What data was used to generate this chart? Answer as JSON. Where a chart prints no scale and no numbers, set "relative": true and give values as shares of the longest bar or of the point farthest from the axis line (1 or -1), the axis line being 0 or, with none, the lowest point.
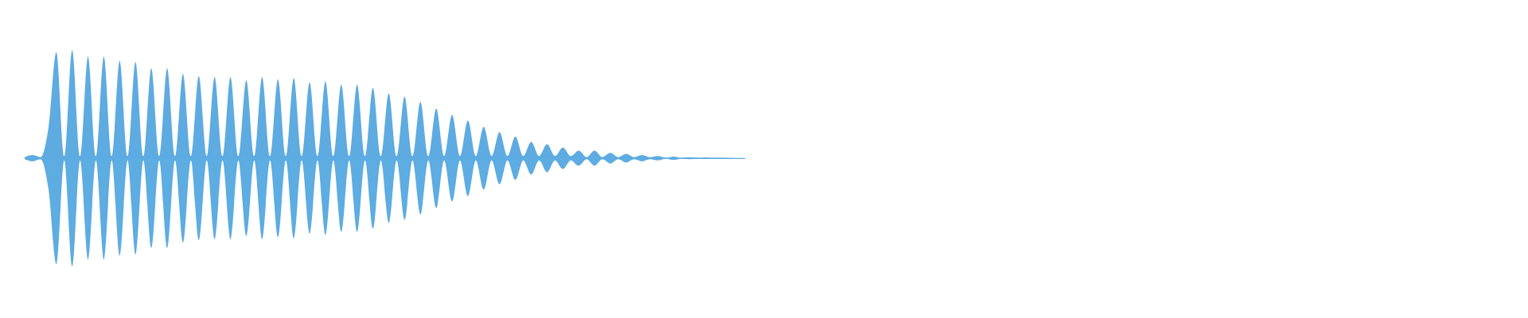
{
  "chart_data": {
    "type": "area",
    "relative": true,
    "grid": false,
    "legend": false,
    "categories": [
      null,
      null,
      null,
      null,
      null,
      null,
      null,
      null,
      null,
      null,
      null,
      null,
      null,
      null,
      null,
      null,
      null,
      null,
      null,
      null,
      null,
      null,
      null,
      null,
      null,
      null,
      null,
      null,
      null,
      null,
      null,
      null,
      null,
      null,
      null,
      null,
      null,
      null,
      null,
      null,
      null,
      null,
      null,
      null,
      null,
      null,
      null,
      null,
      null,
      null,
      null,
      null,
      null,
      null,
      null,
      null,
      null,
      null,
      null,
      null,
      null,
      null,
      null,
      null,
      null,
      null,
      null,
      null,
      null,
      null,
      null,
      null,
      null,
      null,
      null,
      null,
      null,
      null,
      null,
      null,
      null,
      null,
      null,
      null,
      null,
      null,
      null,
      null,
      null,
      null,
      null,
      null
    ],
    "series": [
      {
        "color": "#5dabe1",
        "values": [
          0.01,
          0.03,
          0.01,
          0.28,
          0.98,
          0.02,
          1.0,
          0.02,
          0.94,
          0.02,
          0.94,
          0.02,
          0.9,
          0.02,
          0.89,
          0.02,
          0.83,
          0.02,
          0.83,
          0.02,
          0.78,
          0.02,
          0.76,
          0.02,
          0.75,
          0.02,
          0.75,
          0.02,
          0.72,
          0.02,
          0.75,
          0.02,
          0.73,
          0.02,
          0.74,
          0.02,
          0.7,
          0.02,
          0.71,
          0.02,
          0.68,
          0.02,
          0.68,
          0.02,
          0.65,
          0.02,
          0.6,
          0.02,
          0.57,
          0.02,
          0.52,
          0.02,
          0.46,
          0.02,
          0.4,
          0.02,
          0.35,
          0.02,
          0.29,
          0.02,
          0.24,
          0.02,
          0.2,
          0.02,
          0.15,
          0.02,
          0.13,
          0.02,
          0.1,
          0.02,
          0.07,
          0.01,
          0.07,
          0.01,
          0.05,
          0.01,
          0.04,
          0.01,
          0.03,
          0.01,
          0.02,
          0.005,
          0.015,
          0.005,
          0.01,
          0.005,
          0.007,
          0.005,
          0.005,
          0.003,
          0.002,
          0.002
        ]
      },
      {
        "color": "#5dace2",
        "values": [
          -0.01,
          -0.03,
          -0.01,
          -0.28,
          -0.98,
          -0.02,
          -1.0,
          -0.02,
          -0.94,
          -0.02,
          -0.94,
          -0.02,
          -0.9,
          -0.02,
          -0.89,
          -0.02,
          -0.83,
          -0.02,
          -0.83,
          -0.02,
          -0.78,
          -0.02,
          -0.76,
          -0.02,
          -0.75,
          -0.02,
          -0.75,
          -0.02,
          -0.72,
          -0.02,
          -0.75,
          -0.02,
          -0.73,
          -0.02,
          -0.74,
          -0.02,
          -0.7,
          -0.02,
          -0.71,
          -0.02,
          -0.68,
          -0.02,
          -0.68,
          -0.02,
          -0.65,
          -0.02,
          -0.6,
          -0.02,
          -0.57,
          -0.02,
          -0.52,
          -0.02,
          -0.46,
          -0.02,
          -0.4,
          -0.02,
          -0.35,
          -0.02,
          -0.29,
          -0.02,
          -0.24,
          -0.02,
          -0.2,
          -0.02,
          -0.15,
          -0.02,
          -0.13,
          -0.02,
          -0.1,
          -0.02,
          -0.07,
          -0.01,
          -0.07,
          -0.01,
          -0.05,
          -0.01,
          -0.04,
          -0.01,
          -0.03,
          -0.01,
          -0.02,
          -0.005,
          -0.015,
          -0.005,
          -0.01,
          -0.005,
          -0.007,
          -0.005,
          -0.005,
          -0.003,
          -0.002,
          -0.002
        ]
      }
    ]
  }
}
